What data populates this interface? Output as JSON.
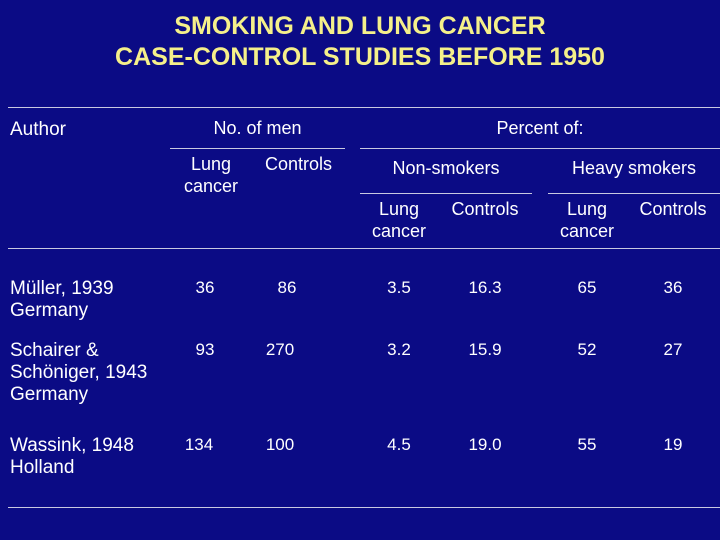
{
  "title": {
    "line1": "SMOKING AND LUNG CANCER",
    "line2": "CASE-CONTROL STUDIES BEFORE 1950"
  },
  "headers": {
    "author": "Author",
    "no_of_men": "No. of men",
    "percent_of": "Percent of:",
    "non_smokers": "Non-smokers",
    "heavy_smokers": "Heavy smokers",
    "lung_line1": "Lung",
    "lung_line2": "cancer",
    "controls": "Controls"
  },
  "colors": {
    "background": "#0b0b85",
    "title": "#f5f08a",
    "text": "#ffffff"
  },
  "rows": [
    {
      "author_lines": [
        "Müller, 1939",
        "Germany",
        ""
      ],
      "men_lung": "36",
      "men_controls": "86",
      "ns_lung": "3.5",
      "ns_controls": "16.3",
      "hs_lung": "65",
      "hs_controls": "36"
    },
    {
      "author_lines": [
        "Schairer &",
        "Schöniger, 1943",
        "Germany"
      ],
      "men_lung": "93",
      "men_controls": "270",
      "ns_lung": "3.2",
      "ns_controls": "15.9",
      "hs_lung": "52",
      "hs_controls": "27"
    },
    {
      "author_lines": [
        "Wassink, 1948",
        "Holland",
        ""
      ],
      "men_lung": "134",
      "men_controls": "100",
      "ns_lung": "4.5",
      "ns_controls": "19.0",
      "hs_lung": "55",
      "hs_controls": "19"
    }
  ]
}
